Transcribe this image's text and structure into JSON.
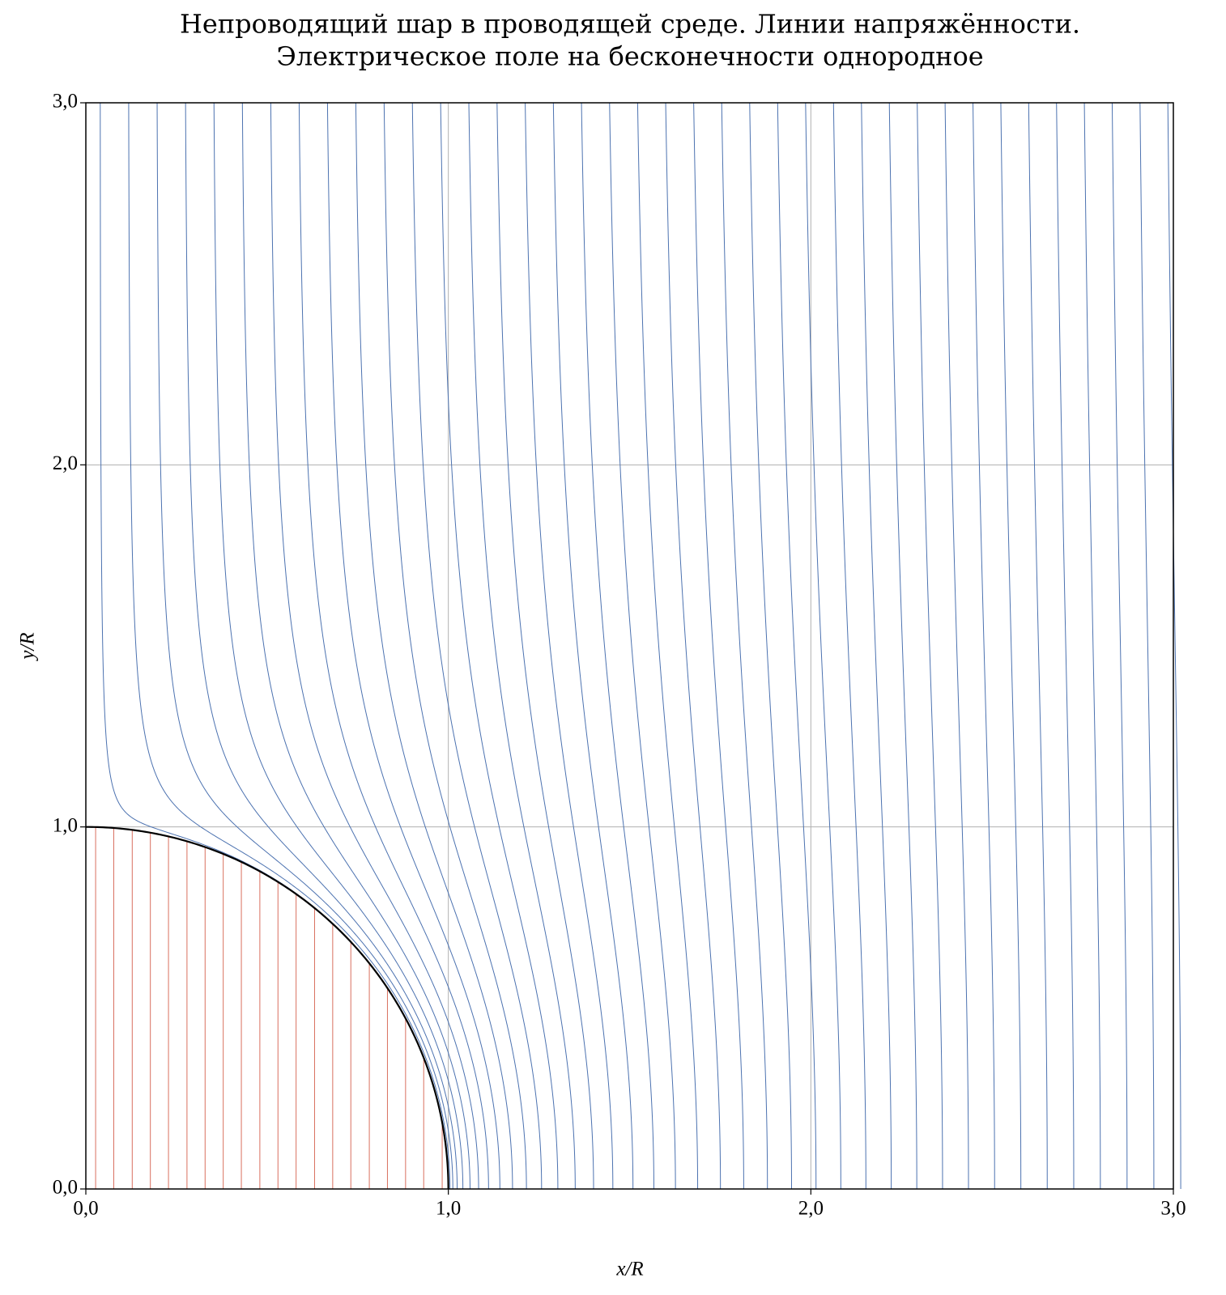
{
  "chart_data": {
    "type": "field_lines",
    "title": "Непроводящий шар в проводящей среде. Линии напряжённости.",
    "subtitle": "Электрическое поле на бесконечности однородное",
    "xlabel": "x/R",
    "ylabel": "y/R",
    "xlim": [
      0,
      3
    ],
    "ylim": [
      0,
      3
    ],
    "xticks": [
      {
        "value": 0,
        "label": "0,0"
      },
      {
        "value": 1,
        "label": "1,0"
      },
      {
        "value": 2,
        "label": "2,0"
      },
      {
        "value": 3,
        "label": "3,0"
      }
    ],
    "yticks": [
      {
        "value": 0,
        "label": "0,0"
      },
      {
        "value": 1,
        "label": "1,0"
      },
      {
        "value": 2,
        "label": "2,0"
      },
      {
        "value": 3,
        "label": "3,0"
      }
    ],
    "grid": true,
    "sphere": {
      "radius": 1,
      "color": "#000000"
    },
    "outer_lines": {
      "color": "#4c72b0",
      "x0": [
        0.039,
        0.116,
        0.193,
        0.27,
        0.347,
        0.424,
        0.501,
        0.578,
        0.655,
        0.732,
        0.809,
        0.886,
        0.963,
        1.04,
        1.117,
        1.194,
        1.271,
        1.348,
        1.425,
        1.502,
        1.579,
        1.656,
        1.733,
        1.81,
        1.887,
        1.964,
        2.041,
        2.118,
        2.195,
        2.272,
        2.349,
        2.426,
        2.503,
        2.58,
        2.657,
        2.734,
        2.811,
        2.888,
        2.965
      ]
    },
    "inner_lines": {
      "color": "#d9705f",
      "x": [
        0.027,
        0.077,
        0.128,
        0.178,
        0.228,
        0.279,
        0.329,
        0.379,
        0.429,
        0.48,
        0.53,
        0.58,
        0.631,
        0.681,
        0.731,
        0.782,
        0.832,
        0.882,
        0.932,
        0.983
      ]
    }
  }
}
